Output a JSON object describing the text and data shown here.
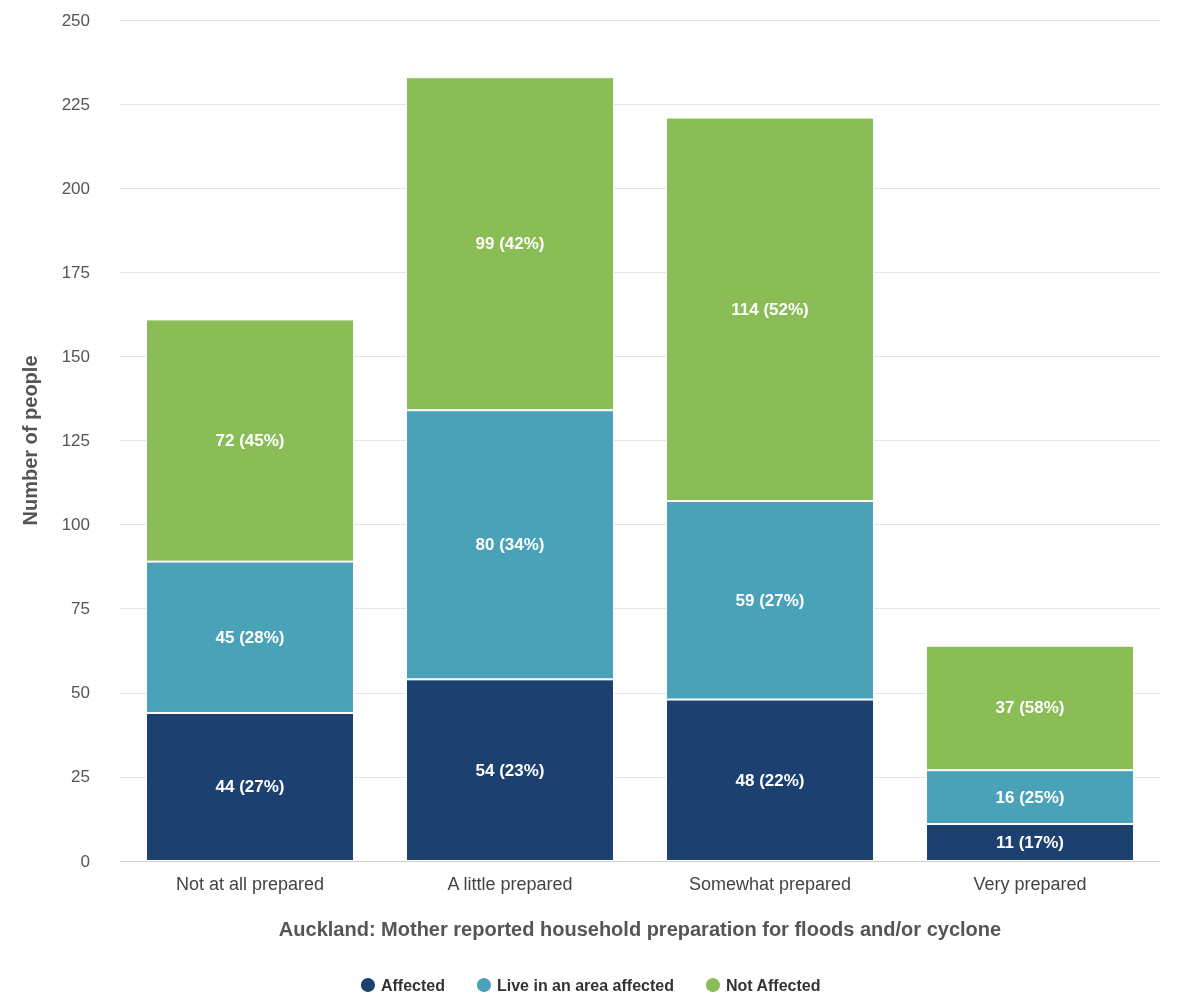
{
  "chart_data": {
    "type": "bar",
    "stacked": true,
    "xlabel": "Auckland: Mother reported household preparation for floods and/or cyclone",
    "ylabel": "Number of people",
    "categories": [
      "Not at all prepared",
      "A little prepared",
      "Somewhat prepared",
      "Very prepared"
    ],
    "series": [
      {
        "name": "Affected",
        "color": "#1c4170",
        "values": [
          44,
          54,
          48,
          11
        ],
        "value_labels": [
          "44 (27%)",
          "54 (23%)",
          "48 (22%)",
          "11 (17%)"
        ]
      },
      {
        "name": "Live in an area affected",
        "color": "#4aa2b8",
        "values": [
          45,
          80,
          59,
          16
        ],
        "value_labels": [
          "45 (28%)",
          "80 (34%)",
          "59 (27%)",
          "16 (25%)"
        ]
      },
      {
        "name": "Not Affected",
        "color": "#8bbd57",
        "values": [
          72,
          99,
          114,
          37
        ],
        "value_labels": [
          "72 (45%)",
          "99 (42%)",
          "114 (52%)",
          "37 (58%)"
        ]
      }
    ],
    "ylim": [
      0,
      250
    ],
    "yticks": [
      0,
      25,
      50,
      75,
      100,
      125,
      150,
      175,
      200,
      225,
      250
    ],
    "grid": "y",
    "legend": "bottom"
  }
}
